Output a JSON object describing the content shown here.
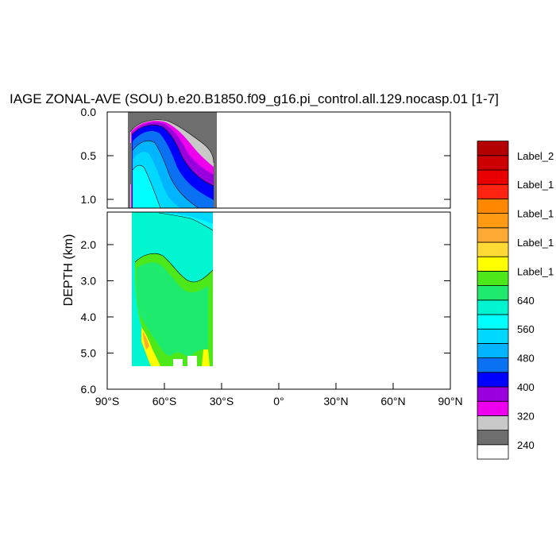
{
  "chart_data": {
    "type": "contour",
    "title": "IAGE ZONAL-AVE (SOU) b.e20.B1850.f09_g16.pi_control.all.129.nocasp.01 [1-7]",
    "ylabel": "DEPTH (km)",
    "xlim": [
      -90,
      90
    ],
    "x_ticks": [
      {
        "value": -90,
        "label": "90°S"
      },
      {
        "value": -60,
        "label": "60°S"
      },
      {
        "value": -30,
        "label": "30°S"
      },
      {
        "value": 0,
        "label": "0°"
      },
      {
        "value": 30,
        "label": "30°N"
      },
      {
        "value": 60,
        "label": "60°N"
      },
      {
        "value": 90,
        "label": "90°N"
      }
    ],
    "panels": [
      {
        "name": "upper",
        "ylim": [
          0,
          1.1
        ],
        "y_ticks": [
          {
            "value": 0,
            "label": "0.0"
          },
          {
            "value": 0.5,
            "label": "0.5"
          },
          {
            "value": 1.0,
            "label": "1.0"
          }
        ]
      },
      {
        "name": "lower",
        "ylim": [
          1.1,
          6.0
        ],
        "y_ticks": [
          {
            "value": 2,
            "label": "2.0"
          },
          {
            "value": 3,
            "label": "3.0"
          },
          {
            "value": 4,
            "label": "4.0"
          },
          {
            "value": 5,
            "label": "5.0"
          },
          {
            "value": 6,
            "label": "6.0"
          }
        ]
      }
    ],
    "data_lat_range": [
      -78,
      -34
    ],
    "legend": {
      "placement": "right",
      "colors": [
        "#ffffff",
        "#6e6e6e",
        "#c8c8c8",
        "#ee00ee",
        "#9a00dd",
        "#0000ff",
        "#0a72f2",
        "#00b4ff",
        "#00d8ff",
        "#00ffff",
        "#00f5d0",
        "#1eeb6e",
        "#4de81a",
        "#ffff00",
        "#ffd934",
        "#ffaa34",
        "#ff9a12",
        "#ff8800",
        "#ff2412",
        "#e80000",
        "#cc0000",
        "#b40000"
      ],
      "labels": [
        {
          "text": "240",
          "boundary": 1
        },
        {
          "text": "320",
          "boundary": 3
        },
        {
          "text": "400",
          "boundary": 5
        },
        {
          "text": "480",
          "boundary": 7
        },
        {
          "text": "560",
          "boundary": 9
        },
        {
          "text": "640",
          "boundary": 11
        },
        {
          "text": "Label_1",
          "boundary": 13
        },
        {
          "text": "Label_1",
          "boundary": 15
        },
        {
          "text": "Label_1",
          "boundary": 17
        },
        {
          "text": "Label_1",
          "boundary": 19
        },
        {
          "text": "Label_2",
          "boundary": 21
        }
      ]
    }
  }
}
